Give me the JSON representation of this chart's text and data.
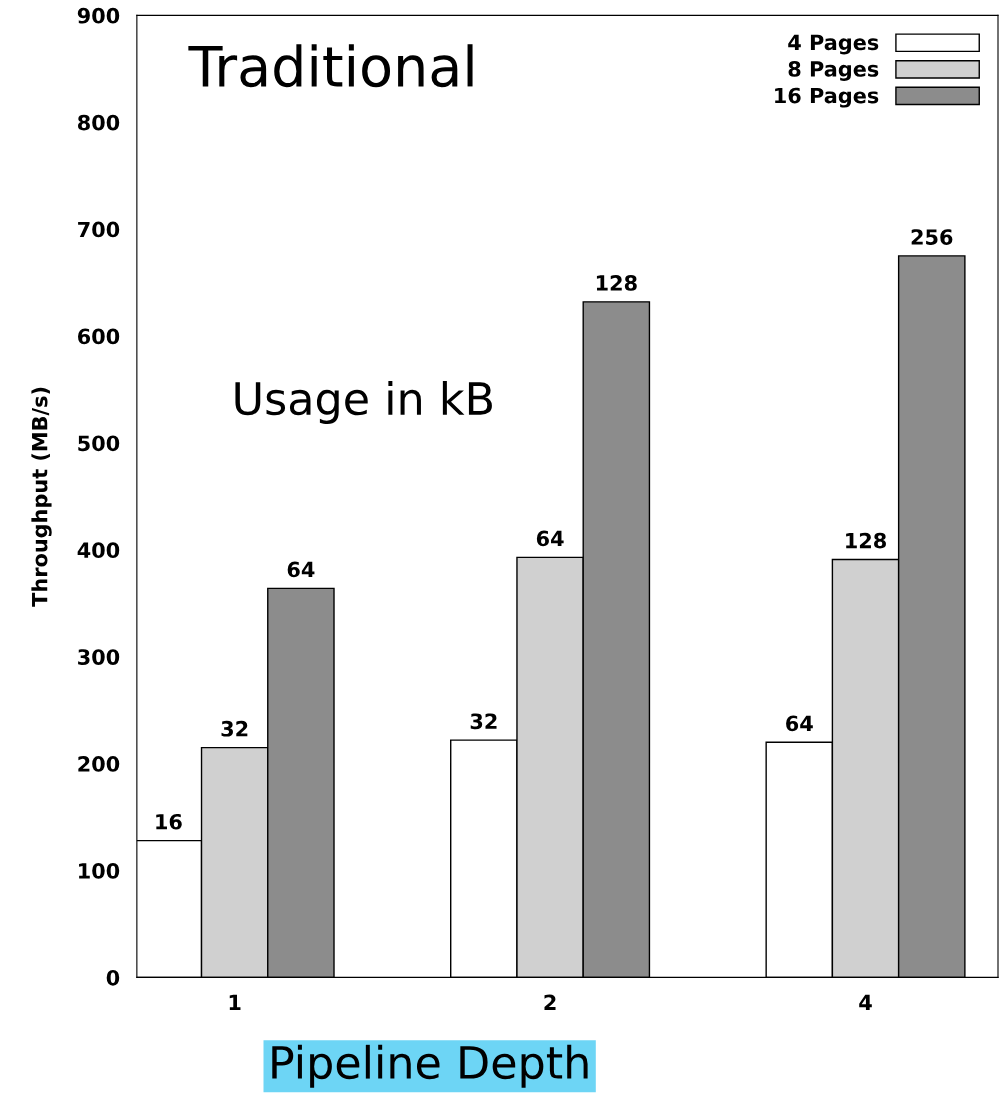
{
  "chart_data": {
    "type": "bar",
    "xlabel": "Pipeline Depth",
    "ylabel": "Throughput (MB/s)",
    "categories": [
      "1",
      "2",
      "4"
    ],
    "series": [
      {
        "name": "4 Pages",
        "color": "#ffffff",
        "values": [
          128,
          222,
          220
        ]
      },
      {
        "name": "8 Pages",
        "color": "#d0d0d0",
        "values": [
          215,
          393,
          391
        ]
      },
      {
        "name": "16 Pages",
        "color": "#8c8c8c",
        "values": [
          364,
          632,
          675
        ]
      }
    ],
    "ylim": [
      0,
      900
    ],
    "yticks": [
      0,
      100,
      200,
      300,
      400,
      500,
      600,
      700,
      800,
      900
    ],
    "annotations": [
      "Traditional",
      "Usage in kB",
      "16",
      "32",
      "64",
      "32",
      "64",
      "128",
      "64",
      "128",
      "256"
    ],
    "legend": "top right",
    "grid": false
  }
}
